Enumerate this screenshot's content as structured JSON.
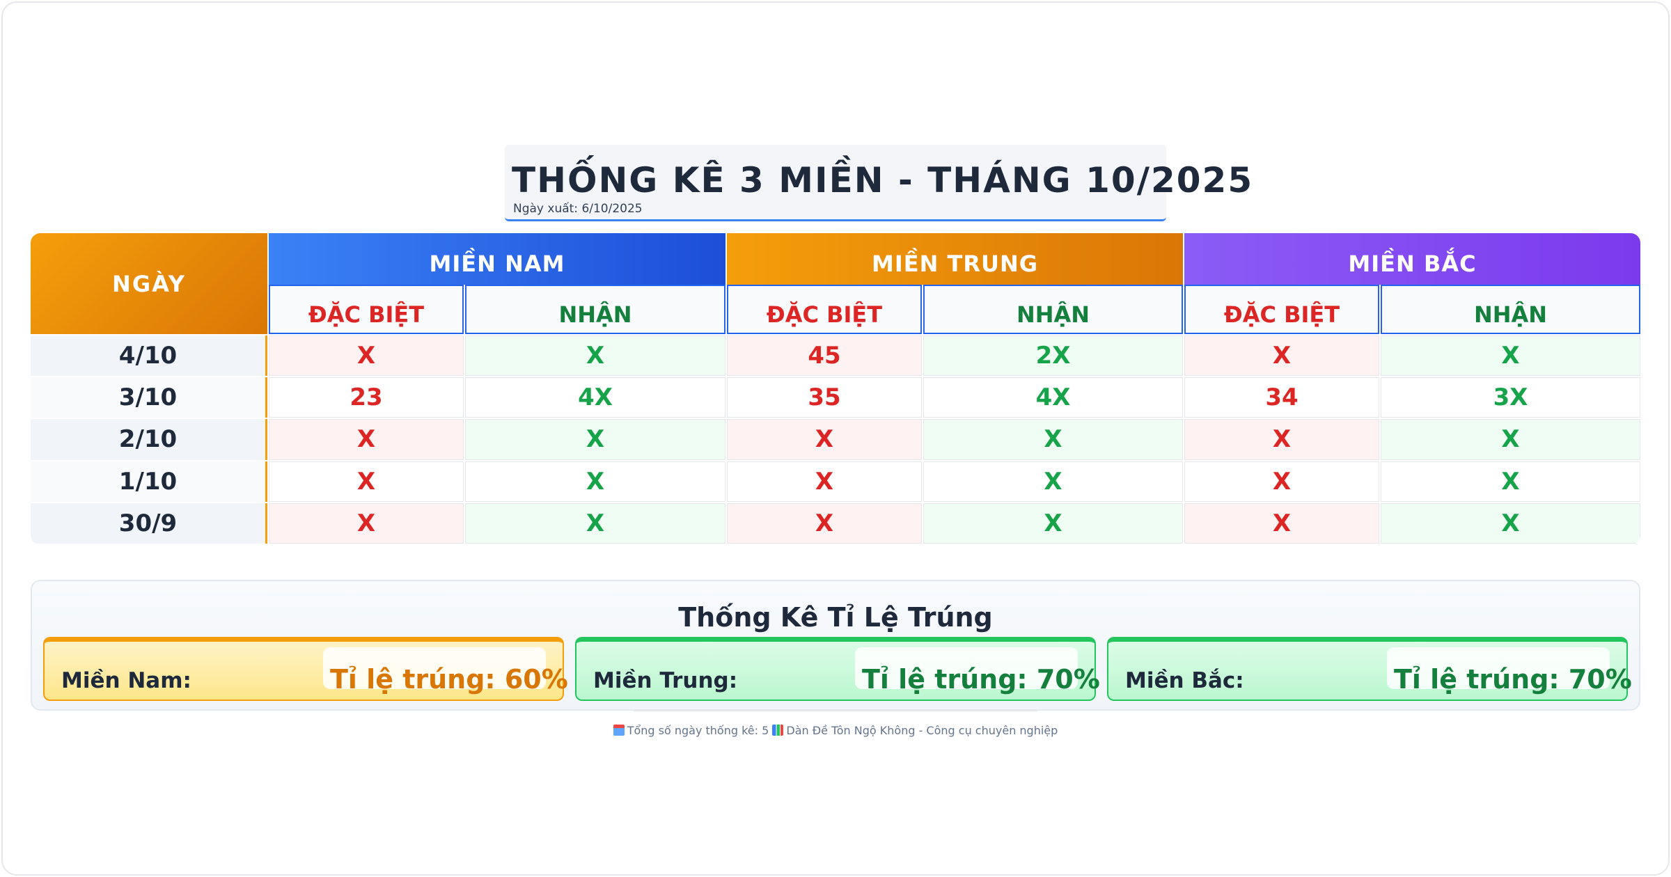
{
  "title": "THỐNG KÊ 3 MIỀN - THÁNG 10/2025",
  "export_date": "Ngày xuất: 6/10/2025",
  "table": {
    "day_header": "NGÀY",
    "groups": [
      "MIỀN NAM",
      "MIỀN TRUNG",
      "MIỀN BẮC"
    ],
    "sub_headers": {
      "special": "ĐẶC BIỆT",
      "receive": "NHẬN"
    },
    "rows": [
      {
        "day": "4/10",
        "values": [
          "X",
          "X",
          "45",
          "2X",
          "X",
          "X"
        ]
      },
      {
        "day": "3/10",
        "values": [
          "23",
          "4X",
          "35",
          "4X",
          "34",
          "3X"
        ]
      },
      {
        "day": "2/10",
        "values": [
          "X",
          "X",
          "X",
          "X",
          "X",
          "X"
        ]
      },
      {
        "day": "1/10",
        "values": [
          "X",
          "X",
          "X",
          "X",
          "X",
          "X"
        ]
      },
      {
        "day": "30/9",
        "values": [
          "X",
          "X",
          "X",
          "X",
          "X",
          "X"
        ]
      }
    ]
  },
  "stats": {
    "title": "Thống Kê Tỉ Lệ Trúng",
    "cards": [
      {
        "label": "Miền Nam:",
        "rate": "Tỉ lệ trúng: 60%"
      },
      {
        "label": "Miền Trung:",
        "rate": "Tỉ lệ trúng: 70%"
      },
      {
        "label": "Miền Bắc:",
        "rate": "Tỉ lệ trúng: 70%"
      }
    ]
  },
  "footer": {
    "days_text": "Tổng số ngày thống kê: 5",
    "brand_text": "Dàn Đề Tôn Ngộ Không - Công cụ chuyên nghiệp",
    "icons": [
      "calendar-icon",
      "bar-chart-icon"
    ]
  },
  "colors": {
    "nam": "#2563eb",
    "trung": "#d97706",
    "bac": "#7c3aed",
    "special": "#dc2626",
    "receive": "#16a34a"
  }
}
